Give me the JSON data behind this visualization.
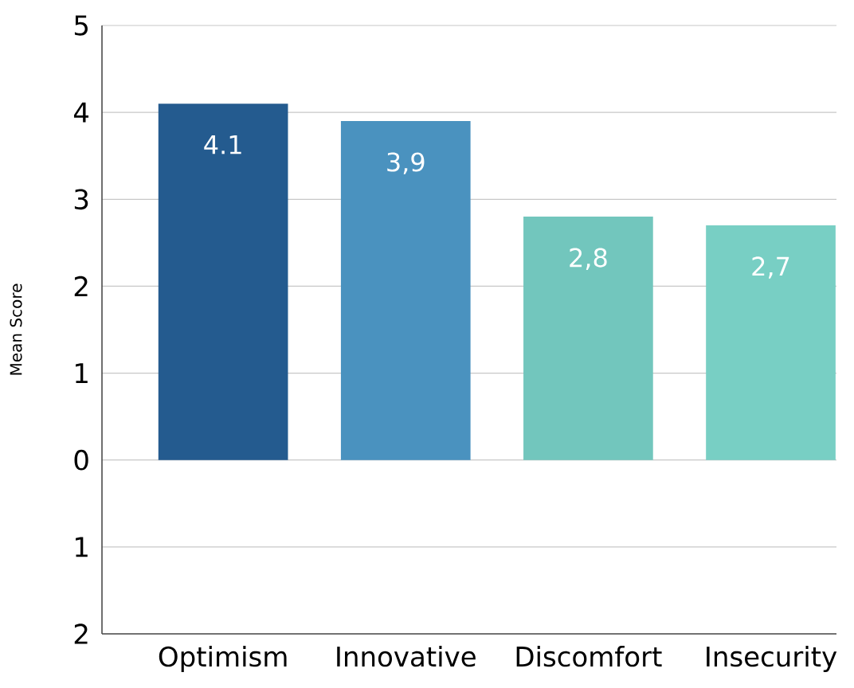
{
  "chart_data": {
    "type": "bar",
    "ylabel": "Mean Score",
    "categories": [
      "Optimism",
      "Innovative",
      "Discomfort",
      "Insecurity"
    ],
    "values": [
      4.1,
      3.9,
      2.8,
      2.7
    ],
    "value_labels": [
      "4.1",
      "3,9",
      "2,8",
      "2,7"
    ],
    "colors": [
      "#245b8f",
      "#4a92bf",
      "#72c6bd",
      "#78cfc4"
    ],
    "ylim": [
      -2,
      5
    ],
    "yticks": [
      {
        "value": -2,
        "label": "2"
      },
      {
        "value": -1,
        "label": "1"
      },
      0,
      1,
      2,
      3,
      4,
      5
    ],
    "grid": "y"
  }
}
